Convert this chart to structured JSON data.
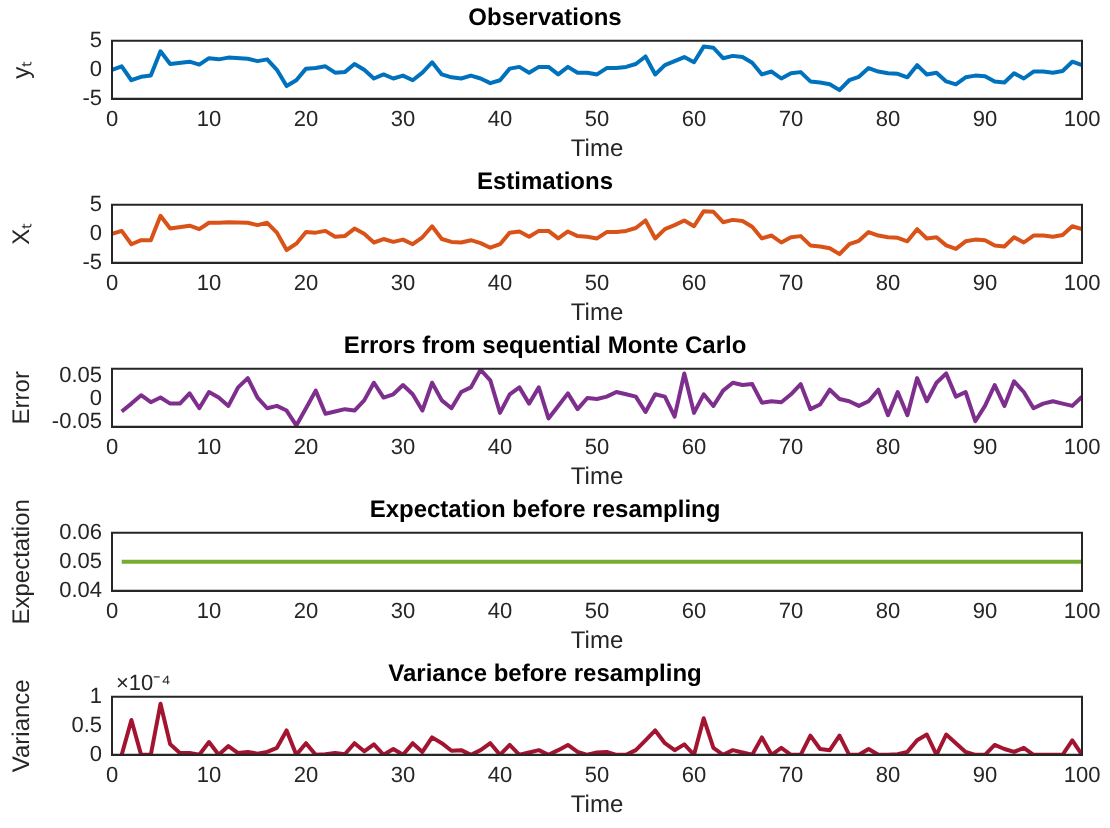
{
  "chart_data": [
    {
      "type": "line",
      "title": "Observations",
      "xlabel": "Time",
      "ylabel": "yₜ",
      "color": "#0072bd",
      "xlim": [
        0,
        100
      ],
      "xticks": [
        0,
        10,
        20,
        30,
        40,
        50,
        60,
        70,
        80,
        90,
        100
      ],
      "ylim": [
        -5,
        5
      ],
      "yticks": [
        -5,
        0,
        5
      ],
      "grid": false,
      "x": [
        0,
        1,
        2,
        3,
        4,
        5,
        6,
        8,
        9,
        10,
        11,
        12,
        14,
        15,
        16,
        17,
        18,
        19,
        20,
        21,
        22,
        23,
        24,
        25,
        26,
        27,
        28,
        29,
        30,
        31,
        32,
        33,
        34,
        35,
        36,
        37,
        38,
        39,
        40,
        41,
        42,
        43,
        44,
        45,
        46,
        47,
        48,
        49,
        50,
        51,
        52,
        53,
        54,
        55,
        56,
        57,
        58,
        59,
        60,
        61,
        62,
        63,
        64,
        65,
        66,
        67,
        68,
        69,
        70,
        71,
        72,
        73,
        74,
        75,
        76,
        77,
        78,
        79,
        80,
        81,
        82,
        83,
        84,
        85,
        86,
        87,
        88,
        89,
        90,
        91,
        92,
        93,
        94,
        95,
        96,
        97,
        98,
        99,
        100
      ],
      "values": [
        0,
        0.6,
        -1.8,
        -1.2,
        -1,
        3.2,
        1,
        1.4,
        0.9,
        2,
        1.8,
        2.1,
        1.9,
        1.5,
        1.8,
        0,
        -2.8,
        -1.8,
        0.2,
        0.3,
        0.6,
        -0.5,
        -0.4,
        1,
        0,
        -1.5,
        -0.8,
        -1.5,
        -1,
        -1.8,
        -0.5,
        1.3,
        -0.8,
        -1.3,
        -1.5,
        -1,
        -1.5,
        -2.3,
        -1.8,
        0.2,
        0.5,
        -0.5,
        0.5,
        0.5,
        -0.8,
        0.5,
        -0.5,
        -0.5,
        -0.8,
        0.3,
        0.3,
        0.5,
        1,
        2.3,
        -0.8,
        0.8,
        1.5,
        2.2,
        1.3,
        4,
        3.8,
        2,
        2.4,
        2.2,
        1.2,
        -0.8,
        -0.3,
        -1.5,
        -0.6,
        -0.4,
        -2,
        -2.2,
        -2.5,
        -3.5,
        -1.8,
        -1.2,
        0.3,
        -0.3,
        -0.6,
        -0.7,
        -1.3,
        0.8,
        -0.8,
        -0.5,
        -2,
        -2.5,
        -1.3,
        -1,
        -1.1,
        -2,
        -2.2,
        -0.6,
        -1.5,
        -0.3,
        -0.3,
        -0.5,
        -0.2,
        1.4,
        0.8
      ]
    },
    {
      "type": "line",
      "title": "Estimations",
      "xlabel": "Time",
      "ylabel": "Xₜ",
      "color": "#d95319",
      "xlim": [
        0,
        100
      ],
      "xticks": [
        0,
        10,
        20,
        30,
        40,
        50,
        60,
        70,
        80,
        90,
        100
      ],
      "ylim": [
        -5,
        5
      ],
      "yticks": [
        -5,
        0,
        5
      ],
      "grid": false,
      "x": [
        0,
        1,
        2,
        3,
        4,
        5,
        6,
        8,
        9,
        10,
        11,
        12,
        14,
        15,
        16,
        17,
        18,
        19,
        20,
        21,
        22,
        23,
        24,
        25,
        26,
        27,
        28,
        29,
        30,
        31,
        32,
        33,
        34,
        35,
        36,
        37,
        38,
        39,
        40,
        41,
        42,
        43,
        44,
        45,
        46,
        47,
        48,
        49,
        50,
        51,
        52,
        53,
        54,
        55,
        56,
        57,
        58,
        59,
        60,
        61,
        62,
        63,
        64,
        65,
        66,
        67,
        68,
        69,
        70,
        71,
        72,
        73,
        74,
        75,
        76,
        77,
        78,
        79,
        80,
        81,
        82,
        83,
        84,
        85,
        86,
        87,
        88,
        89,
        90,
        91,
        92,
        93,
        94,
        95,
        96,
        97,
        98,
        99,
        100
      ],
      "values": [
        0,
        0.5,
        -1.8,
        -1.1,
        -1.1,
        3.1,
        0.9,
        1.4,
        0.8,
        1.9,
        1.9,
        2,
        1.9,
        1.5,
        1.9,
        0.2,
        -2.8,
        -1.7,
        0.3,
        0.2,
        0.5,
        -0.5,
        -0.4,
        0.9,
        0,
        -1.5,
        -0.9,
        -1.4,
        -1,
        -1.8,
        -0.6,
        1.3,
        -0.9,
        -1.4,
        -1.5,
        -1.1,
        -1.6,
        -2.4,
        -1.8,
        0.2,
        0.4,
        -0.5,
        0.5,
        0.5,
        -0.8,
        0.4,
        -0.4,
        -0.5,
        -0.8,
        0.3,
        0.3,
        0.5,
        1,
        2.3,
        -0.8,
        0.8,
        1.5,
        2.3,
        1.3,
        3.9,
        3.8,
        2,
        2.4,
        2.2,
        1.2,
        -0.8,
        -0.3,
        -1.5,
        -0.6,
        -0.4,
        -2,
        -2.2,
        -2.5,
        -3.5,
        -1.8,
        -1.2,
        0.3,
        -0.3,
        -0.6,
        -0.7,
        -1.3,
        0.8,
        -0.8,
        -0.6,
        -2,
        -2.6,
        -1.3,
        -1,
        -1.1,
        -2,
        -2.2,
        -0.6,
        -1.5,
        -0.3,
        -0.3,
        -0.5,
        -0.2,
        1.3,
        0.8
      ]
    },
    {
      "type": "line",
      "title": "Errors from sequential Monte Carlo",
      "xlabel": "Time",
      "ylabel": "Error",
      "color": "#7e2f8e",
      "xlim": [
        0,
        100
      ],
      "xticks": [
        0,
        10,
        20,
        30,
        40,
        50,
        60,
        70,
        80,
        90,
        100
      ],
      "ylim": [
        -0.06,
        0.065
      ],
      "yticks": [
        -0.05,
        0,
        0.05
      ],
      "grid": false,
      "x": [
        1,
        2,
        3,
        4,
        5,
        6,
        7,
        8,
        9,
        10,
        11,
        12,
        13,
        14,
        15,
        16,
        17,
        18,
        19,
        20,
        21,
        22,
        23,
        24,
        25,
        26,
        27,
        28,
        29,
        30,
        31,
        32,
        33,
        34,
        35,
        36,
        37,
        38,
        39,
        40,
        41,
        42,
        43,
        44,
        45,
        46,
        47,
        48,
        49,
        50,
        51,
        52,
        53,
        54,
        55,
        56,
        57,
        58,
        59,
        60,
        61,
        62,
        63,
        64,
        65,
        66,
        67,
        68,
        69,
        70,
        71,
        72,
        73,
        74,
        75,
        76,
        77,
        78,
        79,
        80,
        81,
        82,
        83,
        84,
        85,
        86,
        87,
        88,
        89,
        90,
        91,
        92,
        93,
        94,
        95,
        96,
        97,
        98,
        99,
        100
      ],
      "values": [
        -0.027,
        -0.01,
        0.008,
        -0.007,
        0.003,
        -0.01,
        -0.01,
        0.012,
        -0.02,
        0.015,
        0.003,
        -0.015,
        0.025,
        0.045,
        0.003,
        -0.02,
        -0.015,
        -0.025,
        -0.057,
        -0.02,
        0.018,
        -0.032,
        -0.027,
        -0.022,
        -0.025,
        -0.003,
        0.035,
        0.003,
        0.01,
        0.03,
        0.01,
        -0.025,
        0.035,
        -0.003,
        -0.02,
        0.015,
        0.025,
        0.063,
        0.04,
        -0.03,
        0.01,
        0.025,
        -0.01,
        0.025,
        -0.042,
        -0.015,
        0.012,
        -0.022,
        0.002,
        0,
        0.005,
        0.015,
        0.01,
        0.005,
        -0.028,
        0.01,
        0.005,
        -0.038,
        0.055,
        -0.03,
        0.01,
        -0.015,
        0.018,
        0.035,
        0.03,
        0.032,
        -0.008,
        -0.005,
        -0.007,
        0.01,
        0.032,
        -0.022,
        -0.012,
        0.02,
        0,
        -0.005,
        -0.015,
        -0.005,
        0.02,
        -0.035,
        0.015,
        -0.035,
        0.045,
        -0.005,
        0.035,
        0.055,
        0.005,
        0.015,
        -0.048,
        -0.015,
        0.03,
        -0.015,
        0.038,
        0.015,
        -0.02,
        -0.01,
        -0.005,
        -0.01,
        -0.015,
        0.005
      ]
    },
    {
      "type": "line",
      "title": "Expectation before resampling",
      "xlabel": "Time",
      "ylabel": "Expectation",
      "color": "#77ac30",
      "xlim": [
        0,
        100
      ],
      "xticks": [
        0,
        10,
        20,
        30,
        40,
        50,
        60,
        70,
        80,
        90,
        100
      ],
      "ylim": [
        0.04,
        0.06
      ],
      "yticks": [
        0.04,
        0.05,
        0.06
      ],
      "grid": false,
      "x": [
        1,
        100
      ],
      "values": [
        0.05,
        0.05
      ]
    },
    {
      "type": "line",
      "title": "Variance before resampling",
      "xlabel": "Time",
      "ylabel": "Variance",
      "color": "#a2142f",
      "xlim": [
        0,
        100
      ],
      "xticks": [
        0,
        10,
        20,
        30,
        40,
        50,
        60,
        70,
        80,
        90,
        100
      ],
      "ylim": [
        0,
        1
      ],
      "yticks": [
        0,
        0.5,
        1
      ],
      "grid": false,
      "annotations": [
        "×10⁻⁴"
      ],
      "x": [
        1,
        2,
        3,
        4,
        5,
        6,
        7,
        8,
        9,
        10,
        11,
        12,
        13,
        14,
        15,
        16,
        17,
        18,
        19,
        20,
        21,
        22,
        23,
        24,
        25,
        26,
        27,
        28,
        29,
        30,
        31,
        32,
        33,
        34,
        35,
        36,
        37,
        38,
        39,
        40,
        41,
        42,
        43,
        44,
        45,
        46,
        47,
        48,
        49,
        50,
        51,
        52,
        53,
        54,
        55,
        56,
        57,
        58,
        59,
        60,
        61,
        62,
        63,
        64,
        65,
        66,
        67,
        68,
        69,
        70,
        71,
        72,
        73,
        74,
        75,
        76,
        77,
        78,
        79,
        80,
        81,
        82,
        83,
        84,
        85,
        86,
        87,
        88,
        89,
        90,
        91,
        92,
        93,
        94,
        95,
        96,
        97,
        98,
        99,
        100
      ],
      "values": [
        0,
        0.6,
        0,
        0,
        0.88,
        0.18,
        0.03,
        0.03,
        0,
        0.22,
        0,
        0.15,
        0.03,
        0.05,
        0.02,
        0.05,
        0.12,
        0.42,
        0,
        0.2,
        0,
        0.01,
        0.03,
        0.01,
        0.2,
        0.06,
        0.18,
        0,
        0.1,
        0,
        0.2,
        0.05,
        0.3,
        0.2,
        0.07,
        0.08,
        0,
        0.08,
        0.2,
        0,
        0.17,
        0,
        0.04,
        0.08,
        0,
        0.08,
        0.17,
        0.05,
        0,
        0.04,
        0.05,
        0,
        0,
        0.08,
        0.25,
        0.42,
        0.2,
        0.08,
        0.18,
        0,
        0.63,
        0.12,
        0,
        0.08,
        0.04,
        0,
        0.3,
        0,
        0.12,
        0,
        0,
        0.33,
        0.1,
        0.08,
        0.33,
        0,
        0,
        0.1,
        0,
        0,
        0.01,
        0.05,
        0.25,
        0.35,
        0,
        0.35,
        0.2,
        0.05,
        0,
        0,
        0.17,
        0.1,
        0.05,
        0.12,
        0,
        0,
        0,
        0,
        0.25,
        0
      ]
    }
  ]
}
